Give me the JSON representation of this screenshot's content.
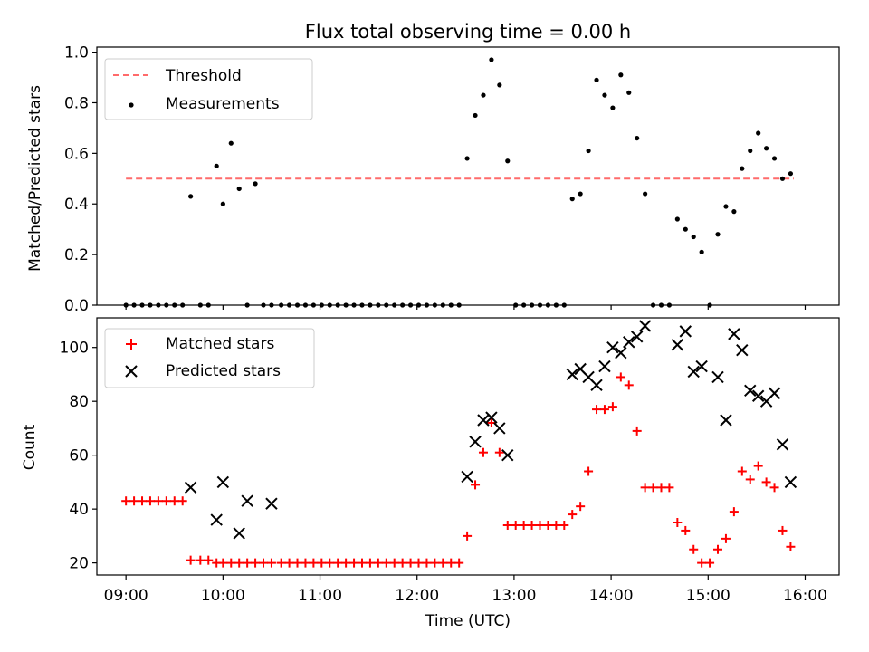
{
  "chart_data": [
    {
      "type": "scatter",
      "title": "Flux total observing time = 0.00 h",
      "xlabel": "",
      "ylabel": "Matched/Predicted stars",
      "xlim_hours": [
        8.7,
        16.35
      ],
      "ylim": [
        0,
        1.02
      ],
      "yticks": [
        0.0,
        0.2,
        0.4,
        0.6,
        0.8,
        1.0
      ],
      "ytick_labels": [
        "0.0",
        "0.2",
        "0.4",
        "0.6",
        "0.8",
        "1.0"
      ],
      "grid": false,
      "legend": "top-left",
      "colors": {
        "threshold": "#ff6b6b",
        "measurements": "#000000"
      },
      "series": [
        {
          "name": "Threshold",
          "kind": "line",
          "x": [
            "09:00",
            "15:53"
          ],
          "y": [
            0.5,
            0.5
          ]
        },
        {
          "name": "Measurements",
          "kind": "scatter",
          "x": [
            "09:00",
            "09:05",
            "09:10",
            "09:15",
            "09:20",
            "09:25",
            "09:30",
            "09:35",
            "09:40",
            "09:46",
            "09:51",
            "09:56",
            "10:00",
            "10:05",
            "10:10",
            "10:15",
            "10:20",
            "10:25",
            "10:30",
            "10:36",
            "10:41",
            "10:46",
            "10:51",
            "10:56",
            "11:01",
            "11:06",
            "11:11",
            "11:16",
            "11:21",
            "11:26",
            "11:31",
            "11:36",
            "11:41",
            "11:46",
            "11:51",
            "11:56",
            "12:01",
            "12:06",
            "12:11",
            "12:16",
            "12:21",
            "12:26",
            "12:31",
            "12:36",
            "12:41",
            "12:46",
            "12:51",
            "12:56",
            "13:01",
            "13:06",
            "13:11",
            "13:16",
            "13:21",
            "13:26",
            "13:31",
            "13:36",
            "13:41",
            "13:46",
            "13:51",
            "13:56",
            "14:01",
            "14:06",
            "14:11",
            "14:16",
            "14:21",
            "14:26",
            "14:31",
            "14:36",
            "14:41",
            "14:46",
            "14:51",
            "14:56",
            "15:01",
            "15:06",
            "15:11",
            "15:16",
            "15:21",
            "15:26",
            "15:31",
            "15:36",
            "15:41",
            "15:46",
            "15:51"
          ],
          "y": [
            0.0,
            0.0,
            0.0,
            0.0,
            0.0,
            0.0,
            0.0,
            0.0,
            0.43,
            0.0,
            0.0,
            0.55,
            0.4,
            0.64,
            0.46,
            0.0,
            0.48,
            0.0,
            0.0,
            0.0,
            0.0,
            0.0,
            0.0,
            0.0,
            0.0,
            0.0,
            0.0,
            0.0,
            0.0,
            0.0,
            0.0,
            0.0,
            0.0,
            0.0,
            0.0,
            0.0,
            0.0,
            0.0,
            0.0,
            0.0,
            0.0,
            0.0,
            0.58,
            0.75,
            0.83,
            0.97,
            0.87,
            0.57,
            0.0,
            0.0,
            0.0,
            0.0,
            0.0,
            0.0,
            0.0,
            0.42,
            0.44,
            0.61,
            0.89,
            0.83,
            0.78,
            0.91,
            0.84,
            0.66,
            0.44,
            0.0,
            0.0,
            0.0,
            0.34,
            0.3,
            0.27,
            0.21,
            0.0,
            0.28,
            0.39,
            0.37,
            0.54,
            0.61,
            0.68,
            0.62,
            0.58,
            0.5,
            0.52
          ]
        }
      ]
    },
    {
      "type": "scatter",
      "title": "",
      "xlabel": "Time (UTC)",
      "ylabel": "Count",
      "xlim_hours": [
        8.7,
        16.35
      ],
      "ylim": [
        15.5,
        111
      ],
      "xticks": [
        "09:00",
        "10:00",
        "11:00",
        "12:00",
        "13:00",
        "14:00",
        "15:00",
        "16:00"
      ],
      "yticks": [
        20,
        40,
        60,
        80,
        100
      ],
      "ytick_labels": [
        "20",
        "40",
        "60",
        "80",
        "100"
      ],
      "grid": false,
      "legend": "top-left",
      "colors": {
        "matched": "#ff0000",
        "predicted": "#000000"
      },
      "series": [
        {
          "name": "Matched stars",
          "marker": "plus",
          "x": [
            "09:00",
            "09:05",
            "09:10",
            "09:15",
            "09:20",
            "09:25",
            "09:30",
            "09:35",
            "09:40",
            "09:46",
            "09:51",
            "09:56",
            "10:00",
            "10:05",
            "10:10",
            "10:15",
            "10:20",
            "10:25",
            "10:30",
            "10:36",
            "10:41",
            "10:46",
            "10:51",
            "10:56",
            "11:01",
            "11:06",
            "11:11",
            "11:16",
            "11:21",
            "11:26",
            "11:31",
            "11:36",
            "11:41",
            "11:46",
            "11:51",
            "11:56",
            "12:01",
            "12:06",
            "12:11",
            "12:16",
            "12:21",
            "12:26",
            "12:31",
            "12:36",
            "12:41",
            "12:46",
            "12:51",
            "12:56",
            "13:01",
            "13:06",
            "13:11",
            "13:16",
            "13:21",
            "13:26",
            "13:31",
            "13:36",
            "13:41",
            "13:46",
            "13:51",
            "13:56",
            "14:01",
            "14:06",
            "14:11",
            "14:16",
            "14:21",
            "14:26",
            "14:31",
            "14:36",
            "14:41",
            "14:46",
            "14:51",
            "14:56",
            "15:01",
            "15:06",
            "15:11",
            "15:16",
            "15:21",
            "15:26",
            "15:31",
            "15:36",
            "15:41",
            "15:46",
            "15:51"
          ],
          "y": [
            43,
            43,
            43,
            43,
            43,
            43,
            43,
            43,
            21,
            21,
            21,
            20,
            20,
            20,
            20,
            20,
            20,
            20,
            20,
            20,
            20,
            20,
            20,
            20,
            20,
            20,
            20,
            20,
            20,
            20,
            20,
            20,
            20,
            20,
            20,
            20,
            20,
            20,
            20,
            20,
            20,
            20,
            30,
            49,
            61,
            72,
            61,
            34,
            34,
            34,
            34,
            34,
            34,
            34,
            34,
            38,
            41,
            54,
            77,
            77,
            78,
            89,
            86,
            69,
            48,
            48,
            48,
            48,
            35,
            32,
            25,
            20,
            20,
            25,
            29,
            39,
            54,
            51,
            56,
            50,
            48,
            32,
            26
          ]
        },
        {
          "name": "Predicted stars",
          "marker": "x",
          "x": [
            "09:40",
            "09:56",
            "10:00",
            "10:10",
            "10:15",
            "10:30",
            "12:31",
            "12:36",
            "12:41",
            "12:46",
            "12:51",
            "12:56",
            "13:36",
            "13:41",
            "13:46",
            "13:51",
            "13:56",
            "14:01",
            "14:06",
            "14:11",
            "14:16",
            "14:21",
            "14:41",
            "14:46",
            "14:51",
            "14:56",
            "15:06",
            "15:11",
            "15:16",
            "15:21",
            "15:26",
            "15:31",
            "15:36",
            "15:41",
            "15:46",
            "15:51"
          ],
          "y": [
            48,
            36,
            50,
            31,
            43,
            42,
            52,
            65,
            73,
            74,
            70,
            60,
            90,
            92,
            89,
            86,
            93,
            100,
            98,
            102,
            104,
            108,
            101,
            106,
            91,
            93,
            89,
            73,
            105,
            99,
            84,
            82,
            80,
            83,
            64,
            50
          ]
        }
      ]
    }
  ]
}
